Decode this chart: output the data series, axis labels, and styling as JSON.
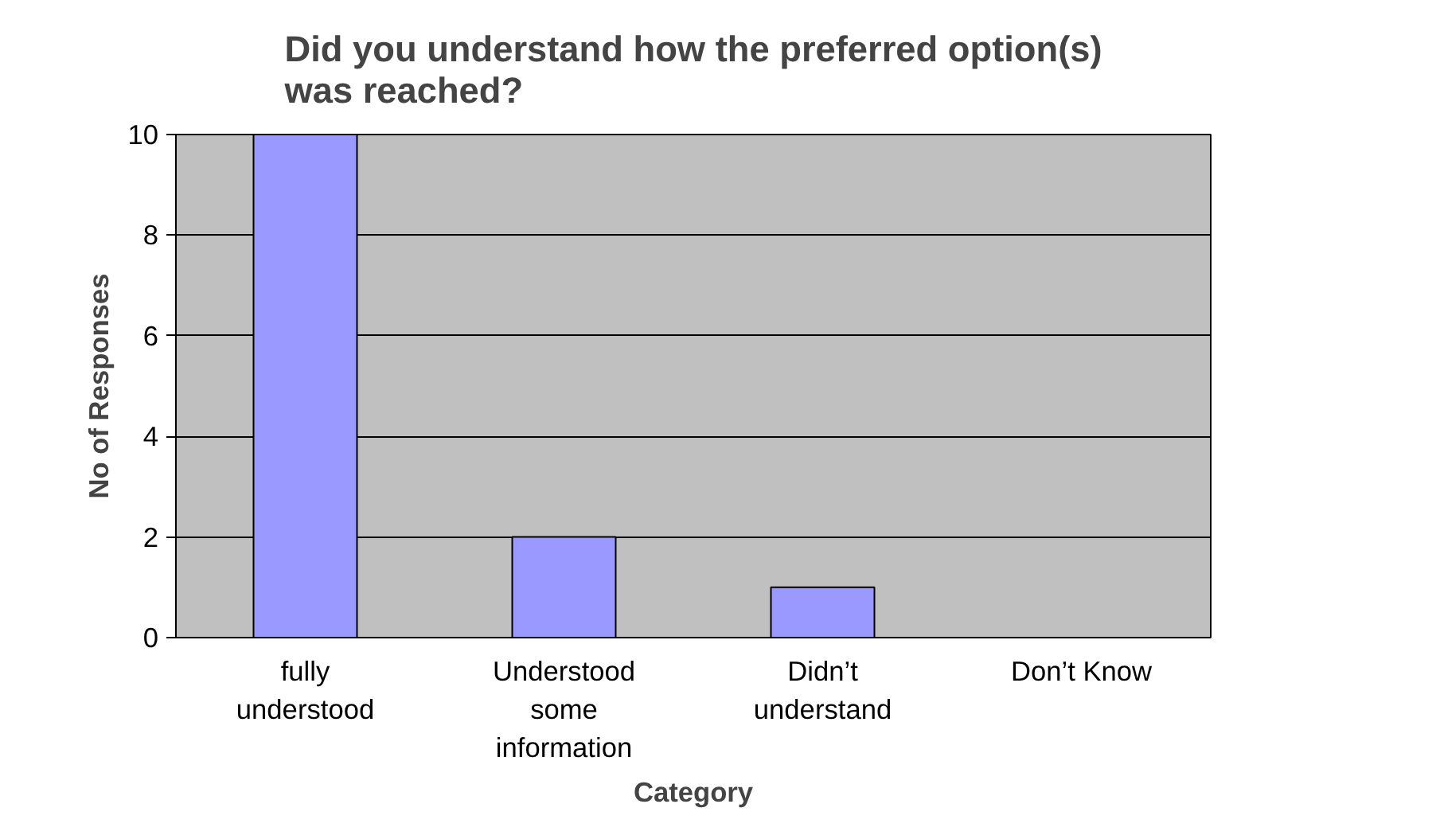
{
  "chart_data": {
    "type": "bar",
    "title": "Did you understand how the preferred option(s) was reached?",
    "xlabel": "Category",
    "ylabel": "No of Responses",
    "categories": [
      "fully understood",
      "Understood some information",
      "Didn’t understand",
      "Don’t Know"
    ],
    "values": [
      10,
      2,
      1,
      0
    ],
    "color": "#9999ff",
    "ylim": [
      0,
      10
    ],
    "yticks": [
      0,
      2,
      4,
      6,
      8,
      10
    ],
    "grid": "y"
  }
}
